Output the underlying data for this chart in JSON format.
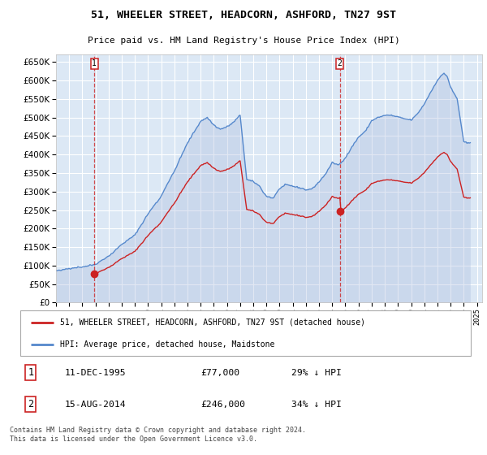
{
  "title": "51, WHEELER STREET, HEADCORN, ASHFORD, TN27 9ST",
  "subtitle": "Price paid vs. HM Land Registry's House Price Index (HPI)",
  "ylim": [
    0,
    670000
  ],
  "yticks": [
    0,
    50000,
    100000,
    150000,
    200000,
    250000,
    300000,
    350000,
    400000,
    450000,
    500000,
    550000,
    600000,
    650000
  ],
  "xlim_start": 1993.0,
  "xlim_end": 2025.4,
  "plot_bg_color": "#dce8f5",
  "grid_color": "#ffffff",
  "hpi_color": "#5588cc",
  "hpi_fill_color": "#aabbdd",
  "price_color": "#cc2222",
  "sale1_date": 1995.917,
  "sale1_price": 77000,
  "sale2_date": 2014.583,
  "sale2_price": 246000,
  "legend_line1": "51, WHEELER STREET, HEADCORN, ASHFORD, TN27 9ST (detached house)",
  "legend_line2": "HPI: Average price, detached house, Maidstone",
  "annotation1_label": "1",
  "annotation1_date": "11-DEC-1995",
  "annotation1_price": "£77,000",
  "annotation1_hpi": "29% ↓ HPI",
  "annotation2_label": "2",
  "annotation2_date": "15-AUG-2014",
  "annotation2_price": "£246,000",
  "annotation2_hpi": "34% ↓ HPI",
  "footer": "Contains HM Land Registry data © Crown copyright and database right 2024.\nThis data is licensed under the Open Government Licence v3.0."
}
